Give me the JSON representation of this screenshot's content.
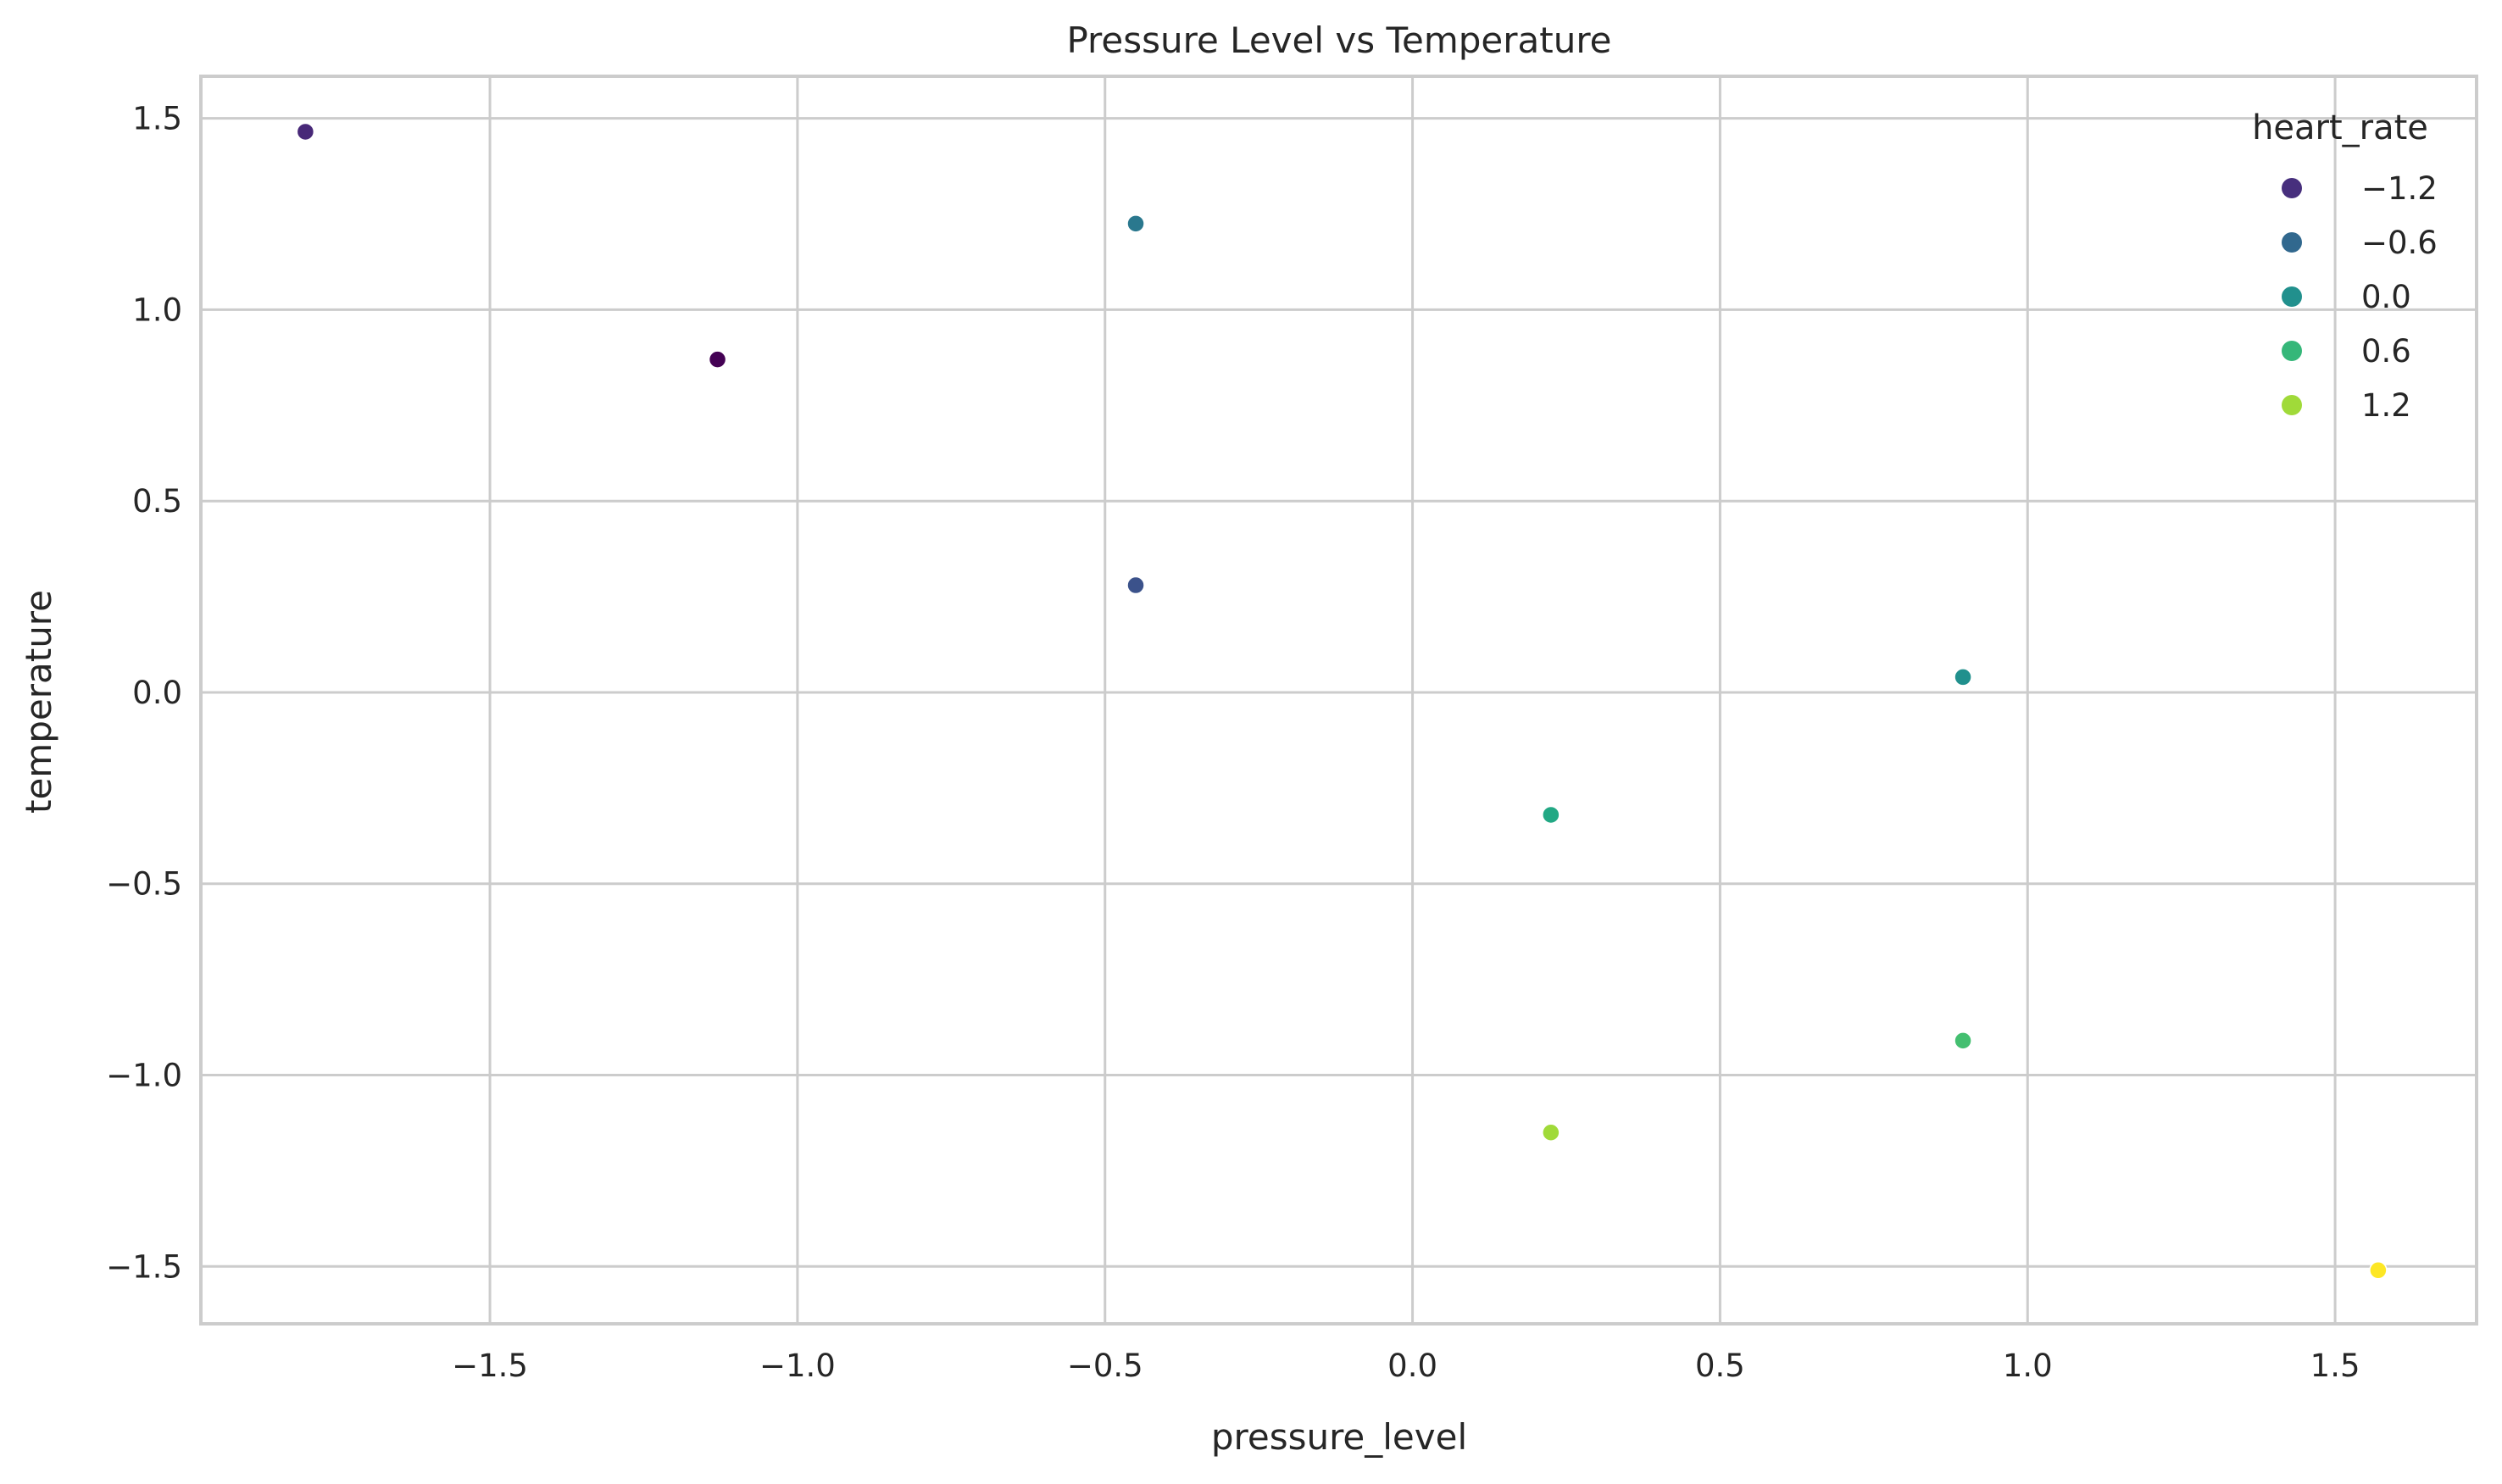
{
  "chart_data": {
    "type": "scatter",
    "title": "Pressure Level vs Temperature",
    "xlabel": "pressure_level",
    "ylabel": "temperature",
    "xlim": [
      -1.97,
      1.73
    ],
    "ylim": [
      -1.65,
      1.61
    ],
    "xticks": [
      -1.5,
      -1.0,
      -0.5,
      0.0,
      0.5,
      1.0,
      1.5
    ],
    "yticks": [
      -1.5,
      -1.0,
      -0.5,
      0.0,
      0.5,
      1.0,
      1.5
    ],
    "xtick_labels": [
      "−1.5",
      "−1.0",
      "−0.5",
      "0.0",
      "0.5",
      "1.0",
      "1.5"
    ],
    "ytick_labels": [
      "−1.5",
      "−1.0",
      "−0.5",
      "0.0",
      "0.5",
      "1.0",
      "1.5"
    ],
    "grid": true,
    "colormap": "viridis",
    "points": [
      {
        "x": -1.8,
        "y": 1.465,
        "color": "#482878"
      },
      {
        "x": -1.13,
        "y": 0.87,
        "color": "#440154"
      },
      {
        "x": -0.45,
        "y": 1.225,
        "color": "#2a788e"
      },
      {
        "x": -0.45,
        "y": 0.28,
        "color": "#3b528b"
      },
      {
        "x": 0.225,
        "y": -0.32,
        "color": "#22a884"
      },
      {
        "x": 0.225,
        "y": -1.15,
        "color": "#a0da39"
      },
      {
        "x": 0.895,
        "y": 0.04,
        "color": "#21908d"
      },
      {
        "x": 0.895,
        "y": -0.91,
        "color": "#44bf70"
      },
      {
        "x": 1.57,
        "y": -1.51,
        "color": "#fde725"
      }
    ],
    "legend": {
      "title": "heart_rate",
      "position": "top-right",
      "entries": [
        {
          "label": "−1.2",
          "color": "#472f7d"
        },
        {
          "label": "−0.6",
          "color": "#31688e"
        },
        {
          "label": "0.0",
          "color": "#21908d"
        },
        {
          "label": "0.6",
          "color": "#35b779"
        },
        {
          "label": "1.2",
          "color": "#a0da39"
        }
      ]
    }
  }
}
